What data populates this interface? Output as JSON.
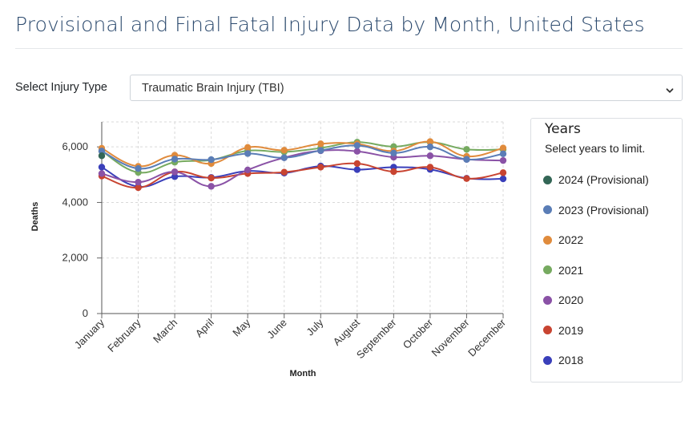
{
  "page": {
    "title": "Provisional and Final Fatal Injury Data by Month, United States"
  },
  "filter": {
    "label": "Select Injury Type",
    "selected": "Traumatic Brain Injury (TBI)",
    "caret_icon": "chevron-down-icon"
  },
  "legend": {
    "title": "Years",
    "subtitle": "Select years to limit."
  },
  "chart_data": {
    "type": "line",
    "xlabel": "Month",
    "ylabel": "Deaths",
    "ylim": [
      0,
      6900
    ],
    "yticks": [
      0,
      2000,
      4000,
      6000
    ],
    "ytick_labels": [
      "0",
      "2,000",
      "4,000",
      "6,000"
    ],
    "grid": true,
    "legend_position": "right",
    "categories": [
      "January",
      "February",
      "March",
      "April",
      "May",
      "June",
      "July",
      "August",
      "September",
      "October",
      "November",
      "December"
    ],
    "series": [
      {
        "name": "2024 (Provisional)",
        "color": "#336656",
        "values": [
          5680,
          null,
          null,
          null,
          null,
          null,
          null,
          null,
          null,
          null,
          null,
          null
        ]
      },
      {
        "name": "2023 (Provisional)",
        "color": "#5a7db6",
        "values": [
          5850,
          5220,
          5560,
          5540,
          5760,
          5610,
          5870,
          6050,
          5780,
          6000,
          5550,
          5750
        ]
      },
      {
        "name": "2022",
        "color": "#e08b3c",
        "values": [
          5950,
          5300,
          5700,
          5400,
          5980,
          5880,
          6110,
          6110,
          5850,
          6190,
          5660,
          5960
        ]
      },
      {
        "name": "2021",
        "color": "#76aa60",
        "values": [
          5850,
          5080,
          5450,
          5530,
          5860,
          5820,
          5960,
          6170,
          6010,
          6170,
          5910,
          5910
        ]
      },
      {
        "name": "2020",
        "color": "#8a52a6",
        "values": [
          5040,
          4730,
          5100,
          4580,
          5170,
          5610,
          5860,
          5840,
          5630,
          5680,
          5550,
          5510
        ]
      },
      {
        "name": "2019",
        "color": "#c84431",
        "values": [
          4950,
          4530,
          5100,
          4880,
          5040,
          5090,
          5270,
          5400,
          5110,
          5270,
          4860,
          5070
        ]
      },
      {
        "name": "2018",
        "color": "#3a3fba",
        "values": [
          5270,
          4570,
          4930,
          4900,
          5130,
          5060,
          5310,
          5180,
          5270,
          5190,
          4870,
          4850
        ]
      }
    ]
  }
}
